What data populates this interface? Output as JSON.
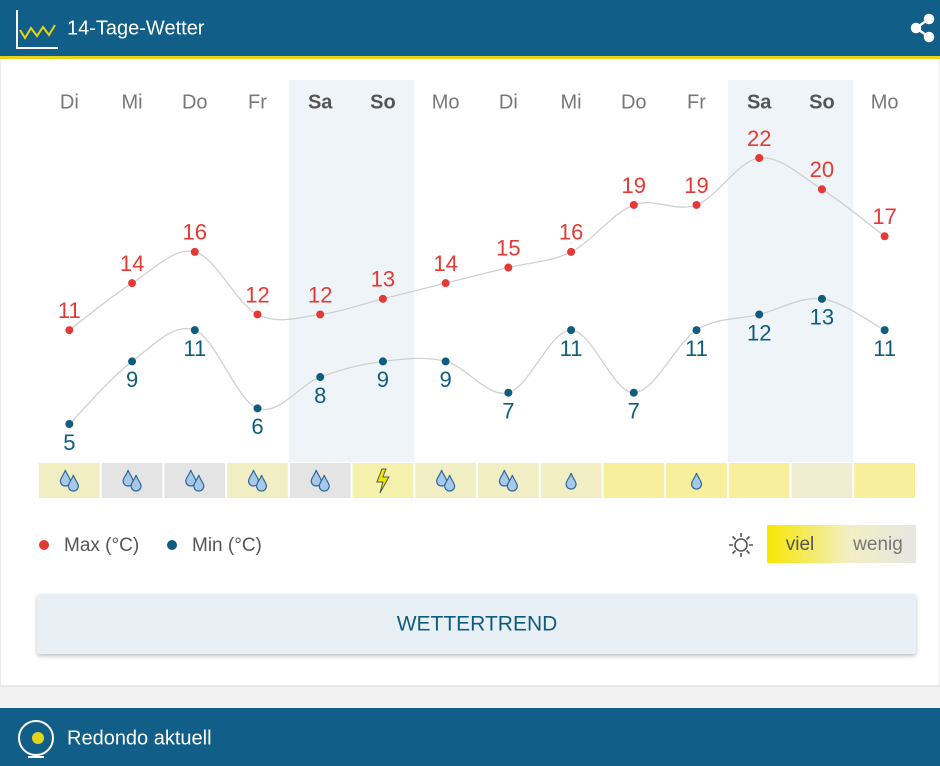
{
  "header": {
    "title": "14-Tage-Wetter"
  },
  "chart_data": {
    "type": "line",
    "categories": [
      "Di",
      "Mi",
      "Do",
      "Fr",
      "Sa",
      "So",
      "Mo",
      "Di",
      "Mi",
      "Do",
      "Fr",
      "Sa",
      "So",
      "Mo"
    ],
    "series": [
      {
        "name": "Max (°C)",
        "color": "#e53935",
        "values": [
          11,
          14,
          16,
          12,
          12,
          13,
          14,
          15,
          16,
          19,
          19,
          22,
          20,
          17
        ]
      },
      {
        "name": "Min (°C)",
        "color": "#0f5c7e",
        "values": [
          5,
          9,
          11,
          6,
          8,
          9,
          9,
          7,
          11,
          7,
          11,
          12,
          13,
          11
        ]
      }
    ],
    "shaded_columns": [
      4,
      5,
      11,
      12
    ],
    "line_color": "#d0d0d0",
    "weather_icons": [
      "rain2",
      "rain2",
      "rain2",
      "rain2",
      "rain2",
      "thunder",
      "rain2",
      "rain2",
      "rain1",
      null,
      "rain1",
      null,
      null,
      null
    ],
    "cell_colors": [
      "#f2eec4",
      "#e4e4e4",
      "#e4e4e4",
      "#f2eec4",
      "#e4e4e4",
      "#f5f0ac",
      "#f2eec4",
      "#f2eec4",
      "#f2eec4",
      "#f7ef9c",
      "#f7ef9c",
      "#f7ef9c",
      "#efecd2",
      "#f7ef9c"
    ]
  },
  "sun_legend": {
    "high": "viel",
    "low": "wenig"
  },
  "button": "WETTERTREND",
  "footer": {
    "title": "Redondo aktuell"
  }
}
